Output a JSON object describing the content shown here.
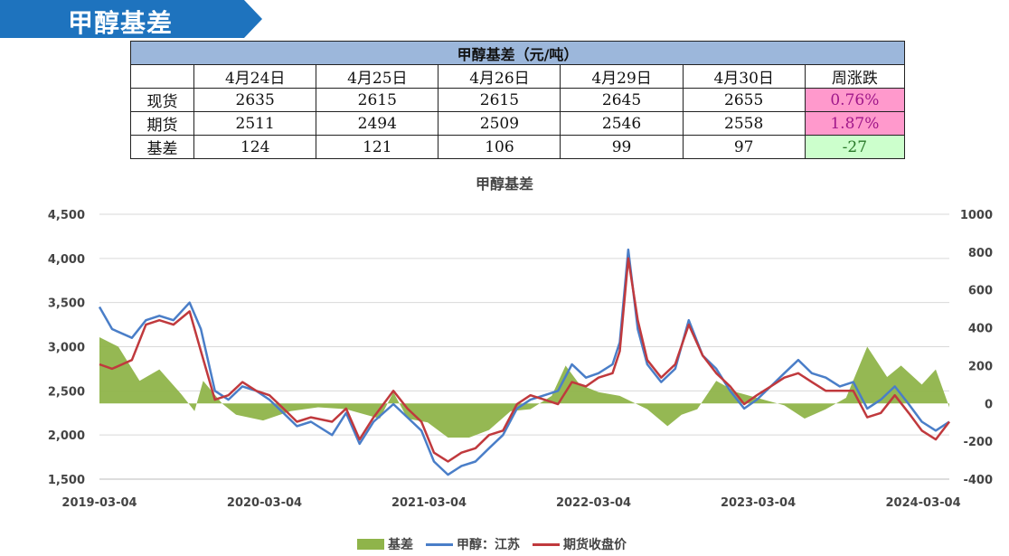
{
  "banner": {
    "title": "甲醇基差",
    "color": "#1e73be"
  },
  "table": {
    "title": "甲醇基差（元/吨）",
    "headers": [
      "",
      "4月24日",
      "4月25日",
      "4月26日",
      "4月29日",
      "4月30日",
      "周涨跌"
    ],
    "rows": [
      {
        "label": "现货",
        "values": [
          "2635",
          "2615",
          "2615",
          "2645",
          "2655"
        ],
        "change": "0.76%",
        "tone": "pos"
      },
      {
        "label": "期货",
        "values": [
          "2511",
          "2494",
          "2509",
          "2546",
          "2558"
        ],
        "change": "1.87%",
        "tone": "pos"
      },
      {
        "label": "基差",
        "values": [
          "124",
          "121",
          "106",
          "99",
          "97"
        ],
        "change": "-27",
        "tone": "neg"
      }
    ]
  },
  "chart_data": {
    "type": "line",
    "title": "甲醇基差",
    "x_ticks": [
      "2019-03-04",
      "2020-03-04",
      "2021-03-04",
      "2022-03-04",
      "2023-03-04",
      "2024-03-04"
    ],
    "x_range": [
      "2019-03-04",
      "2024-05-01"
    ],
    "y_left": {
      "range": [
        1500,
        4500
      ],
      "ticks": [
        "1,500",
        "2,000",
        "2,500",
        "3,000",
        "3,500",
        "4,000",
        "4,500"
      ]
    },
    "y_right": {
      "range": [
        -400,
        1000
      ],
      "ticks": [
        "-400",
        "-200",
        "0",
        "200",
        "400",
        "600",
        "800",
        "1000"
      ]
    },
    "grid": true,
    "legend_position": "bottom",
    "series": [
      {
        "name": "基差",
        "kind": "area",
        "axis": "right",
        "color": "#8fb44a",
        "points": [
          [
            "2019-03-04",
            350
          ],
          [
            "2019-04-15",
            300
          ],
          [
            "2019-06-01",
            120
          ],
          [
            "2019-07-15",
            180
          ],
          [
            "2019-09-01",
            50
          ],
          [
            "2019-10-01",
            -40
          ],
          [
            "2019-10-20",
            120
          ],
          [
            "2019-12-01",
            0
          ],
          [
            "2020-01-01",
            -60
          ],
          [
            "2020-03-01",
            -90
          ],
          [
            "2020-05-01",
            -40
          ],
          [
            "2020-07-01",
            -20
          ],
          [
            "2020-09-01",
            -30
          ],
          [
            "2020-10-15",
            -60
          ],
          [
            "2020-11-15",
            -80
          ],
          [
            "2020-12-15",
            60
          ],
          [
            "2021-01-15",
            -80
          ],
          [
            "2021-03-01",
            -100
          ],
          [
            "2021-04-15",
            -180
          ],
          [
            "2021-06-01",
            -180
          ],
          [
            "2021-07-15",
            -140
          ],
          [
            "2021-09-01",
            -40
          ],
          [
            "2021-10-15",
            -30
          ],
          [
            "2021-12-01",
            40
          ],
          [
            "2022-01-01",
            200
          ],
          [
            "2022-02-01",
            100
          ],
          [
            "2022-03-15",
            60
          ],
          [
            "2022-05-01",
            40
          ],
          [
            "2022-07-01",
            -30
          ],
          [
            "2022-08-15",
            -120
          ],
          [
            "2022-09-15",
            -60
          ],
          [
            "2022-10-20",
            -30
          ],
          [
            "2022-12-01",
            120
          ],
          [
            "2023-01-15",
            60
          ],
          [
            "2023-03-01",
            30
          ],
          [
            "2023-05-01",
            -10
          ],
          [
            "2023-06-15",
            -80
          ],
          [
            "2023-08-01",
            -30
          ],
          [
            "2023-09-15",
            30
          ],
          [
            "2023-11-01",
            300
          ],
          [
            "2023-12-15",
            140
          ],
          [
            "2024-01-15",
            200
          ],
          [
            "2024-03-01",
            100
          ],
          [
            "2024-04-01",
            180
          ],
          [
            "2024-05-01",
            -20
          ]
        ]
      },
      {
        "name": "甲醇：江苏",
        "kind": "line",
        "axis": "left",
        "color": "#4a7ec8",
        "points": [
          [
            "2019-03-04",
            3450
          ],
          [
            "2019-04-01",
            3200
          ],
          [
            "2019-05-15",
            3100
          ],
          [
            "2019-06-15",
            3300
          ],
          [
            "2019-07-15",
            3350
          ],
          [
            "2019-08-15",
            3300
          ],
          [
            "2019-09-20",
            3500
          ],
          [
            "2019-10-15",
            3200
          ],
          [
            "2019-11-15",
            2500
          ],
          [
            "2019-12-15",
            2400
          ],
          [
            "2020-01-15",
            2550
          ],
          [
            "2020-02-15",
            2500
          ],
          [
            "2020-03-15",
            2400
          ],
          [
            "2020-04-15",
            2250
          ],
          [
            "2020-05-15",
            2100
          ],
          [
            "2020-06-15",
            2150
          ],
          [
            "2020-08-01",
            2000
          ],
          [
            "2020-09-01",
            2250
          ],
          [
            "2020-10-01",
            1900
          ],
          [
            "2020-11-01",
            2150
          ],
          [
            "2020-12-15",
            2350
          ],
          [
            "2021-01-15",
            2200
          ],
          [
            "2021-02-15",
            2050
          ],
          [
            "2021-03-15",
            1700
          ],
          [
            "2021-04-15",
            1550
          ],
          [
            "2021-05-15",
            1650
          ],
          [
            "2021-06-15",
            1700
          ],
          [
            "2021-07-15",
            1850
          ],
          [
            "2021-08-15",
            2000
          ],
          [
            "2021-09-15",
            2300
          ],
          [
            "2021-10-15",
            2400
          ],
          [
            "2021-11-15",
            2450
          ],
          [
            "2021-12-15",
            2500
          ],
          [
            "2022-01-15",
            2800
          ],
          [
            "2022-02-15",
            2650
          ],
          [
            "2022-03-15",
            2700
          ],
          [
            "2022-04-15",
            2800
          ],
          [
            "2022-05-01",
            3050
          ],
          [
            "2022-05-20",
            4100
          ],
          [
            "2022-06-10",
            3200
          ],
          [
            "2022-07-01",
            2800
          ],
          [
            "2022-08-01",
            2600
          ],
          [
            "2022-09-01",
            2750
          ],
          [
            "2022-10-01",
            3300
          ],
          [
            "2022-11-01",
            2900
          ],
          [
            "2022-12-01",
            2750
          ],
          [
            "2023-01-01",
            2500
          ],
          [
            "2023-02-01",
            2300
          ],
          [
            "2023-03-01",
            2400
          ],
          [
            "2023-04-01",
            2550
          ],
          [
            "2023-05-01",
            2700
          ],
          [
            "2023-06-01",
            2850
          ],
          [
            "2023-07-01",
            2700
          ],
          [
            "2023-08-01",
            2650
          ],
          [
            "2023-09-01",
            2550
          ],
          [
            "2023-10-01",
            2600
          ],
          [
            "2023-11-01",
            2300
          ],
          [
            "2023-12-01",
            2400
          ],
          [
            "2024-01-01",
            2550
          ],
          [
            "2024-02-01",
            2350
          ],
          [
            "2024-03-01",
            2150
          ],
          [
            "2024-04-01",
            2050
          ],
          [
            "2024-05-01",
            2150
          ]
        ]
      },
      {
        "name": "期货收盘价",
        "kind": "line",
        "axis": "left",
        "color": "#c0393d",
        "points": [
          [
            "2019-03-04",
            2800
          ],
          [
            "2019-04-01",
            2750
          ],
          [
            "2019-05-15",
            2850
          ],
          [
            "2019-06-15",
            3250
          ],
          [
            "2019-07-15",
            3300
          ],
          [
            "2019-08-15",
            3250
          ],
          [
            "2019-09-20",
            3400
          ],
          [
            "2019-10-15",
            2950
          ],
          [
            "2019-11-15",
            2400
          ],
          [
            "2019-12-15",
            2450
          ],
          [
            "2020-01-15",
            2600
          ],
          [
            "2020-02-15",
            2500
          ],
          [
            "2020-03-15",
            2450
          ],
          [
            "2020-04-15",
            2300
          ],
          [
            "2020-05-15",
            2150
          ],
          [
            "2020-06-15",
            2200
          ],
          [
            "2020-08-01",
            2150
          ],
          [
            "2020-09-01",
            2300
          ],
          [
            "2020-10-01",
            1950
          ],
          [
            "2020-11-01",
            2200
          ],
          [
            "2020-12-15",
            2500
          ],
          [
            "2021-01-15",
            2300
          ],
          [
            "2021-02-15",
            2150
          ],
          [
            "2021-03-15",
            1800
          ],
          [
            "2021-04-15",
            1700
          ],
          [
            "2021-05-15",
            1800
          ],
          [
            "2021-06-15",
            1850
          ],
          [
            "2021-07-15",
            2000
          ],
          [
            "2021-08-15",
            2050
          ],
          [
            "2021-09-15",
            2350
          ],
          [
            "2021-10-15",
            2450
          ],
          [
            "2021-11-15",
            2400
          ],
          [
            "2021-12-15",
            2350
          ],
          [
            "2022-01-15",
            2600
          ],
          [
            "2022-02-15",
            2550
          ],
          [
            "2022-03-15",
            2650
          ],
          [
            "2022-04-15",
            2700
          ],
          [
            "2022-05-01",
            2950
          ],
          [
            "2022-05-20",
            4000
          ],
          [
            "2022-06-10",
            3300
          ],
          [
            "2022-07-01",
            2850
          ],
          [
            "2022-08-01",
            2650
          ],
          [
            "2022-09-01",
            2800
          ],
          [
            "2022-10-01",
            3250
          ],
          [
            "2022-11-01",
            2900
          ],
          [
            "2022-12-01",
            2700
          ],
          [
            "2023-01-01",
            2550
          ],
          [
            "2023-02-01",
            2350
          ],
          [
            "2023-03-01",
            2450
          ],
          [
            "2023-04-01",
            2550
          ],
          [
            "2023-05-01",
            2650
          ],
          [
            "2023-06-01",
            2700
          ],
          [
            "2023-07-01",
            2600
          ],
          [
            "2023-08-01",
            2500
          ],
          [
            "2023-09-01",
            2500
          ],
          [
            "2023-10-01",
            2500
          ],
          [
            "2023-11-01",
            2200
          ],
          [
            "2023-12-01",
            2250
          ],
          [
            "2024-01-01",
            2450
          ],
          [
            "2024-02-01",
            2250
          ],
          [
            "2024-03-01",
            2050
          ],
          [
            "2024-04-01",
            1950
          ],
          [
            "2024-05-01",
            2150
          ]
        ]
      }
    ]
  }
}
